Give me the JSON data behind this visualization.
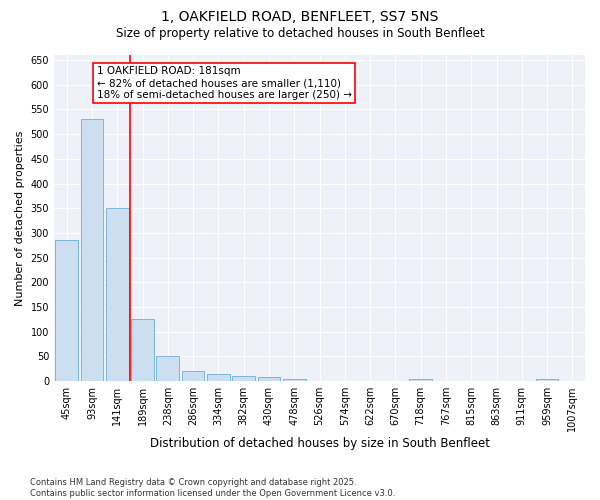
{
  "title": "1, OAKFIELD ROAD, BENFLEET, SS7 5NS",
  "subtitle": "Size of property relative to detached houses in South Benfleet",
  "xlabel": "Distribution of detached houses by size in South Benfleet",
  "ylabel": "Number of detached properties",
  "bar_color": "#ccdff0",
  "bar_edge_color": "#6baed6",
  "background_color": "#eef2f8",
  "grid_color": "#ffffff",
  "categories": [
    "45sqm",
    "93sqm",
    "141sqm",
    "189sqm",
    "238sqm",
    "286sqm",
    "334sqm",
    "382sqm",
    "430sqm",
    "478sqm",
    "526sqm",
    "574sqm",
    "622sqm",
    "670sqm",
    "718sqm",
    "767sqm",
    "815sqm",
    "863sqm",
    "911sqm",
    "959sqm",
    "1007sqm"
  ],
  "values": [
    285,
    530,
    350,
    125,
    50,
    20,
    15,
    10,
    8,
    5,
    0,
    0,
    0,
    0,
    5,
    0,
    0,
    0,
    0,
    5,
    0
  ],
  "red_line_index": 3,
  "annotation_text": "1 OAKFIELD ROAD: 181sqm\n← 82% of detached houses are smaller (1,110)\n18% of semi-detached houses are larger (250) →",
  "ylim": [
    0,
    660
  ],
  "yticks": [
    0,
    50,
    100,
    150,
    200,
    250,
    300,
    350,
    400,
    450,
    500,
    550,
    600,
    650
  ],
  "footer": "Contains HM Land Registry data © Crown copyright and database right 2025.\nContains public sector information licensed under the Open Government Licence v3.0.",
  "title_fontsize": 10,
  "subtitle_fontsize": 8.5,
  "tick_fontsize": 7,
  "ylabel_fontsize": 8,
  "xlabel_fontsize": 8.5,
  "annot_fontsize": 7.5
}
